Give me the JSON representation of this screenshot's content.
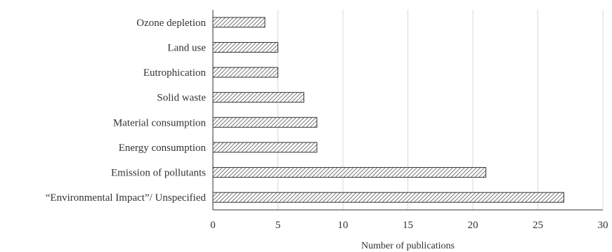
{
  "chart_data": {
    "type": "bar",
    "orientation": "horizontal",
    "categories": [
      "Ozone depletion",
      "Land use",
      "Eutrophication",
      "Solid waste",
      "Material consumption",
      "Energy consumption",
      "Emission of pollutants",
      "“Environmental Impact”/ Unspecified"
    ],
    "values": [
      4,
      5,
      5,
      7,
      8,
      8,
      21,
      27
    ],
    "xlabel": "Number of publications",
    "ylabel": "",
    "xlim": [
      0,
      30
    ],
    "xticks": [
      "0",
      "5",
      "10",
      "15",
      "20",
      "25",
      "30"
    ],
    "grid": "vertical",
    "bar_fill": "hatched",
    "colors": {
      "bar_stroke": "#333333",
      "hatch": "#555555",
      "grid": "#d9d9d9",
      "axis": "#333333"
    }
  }
}
